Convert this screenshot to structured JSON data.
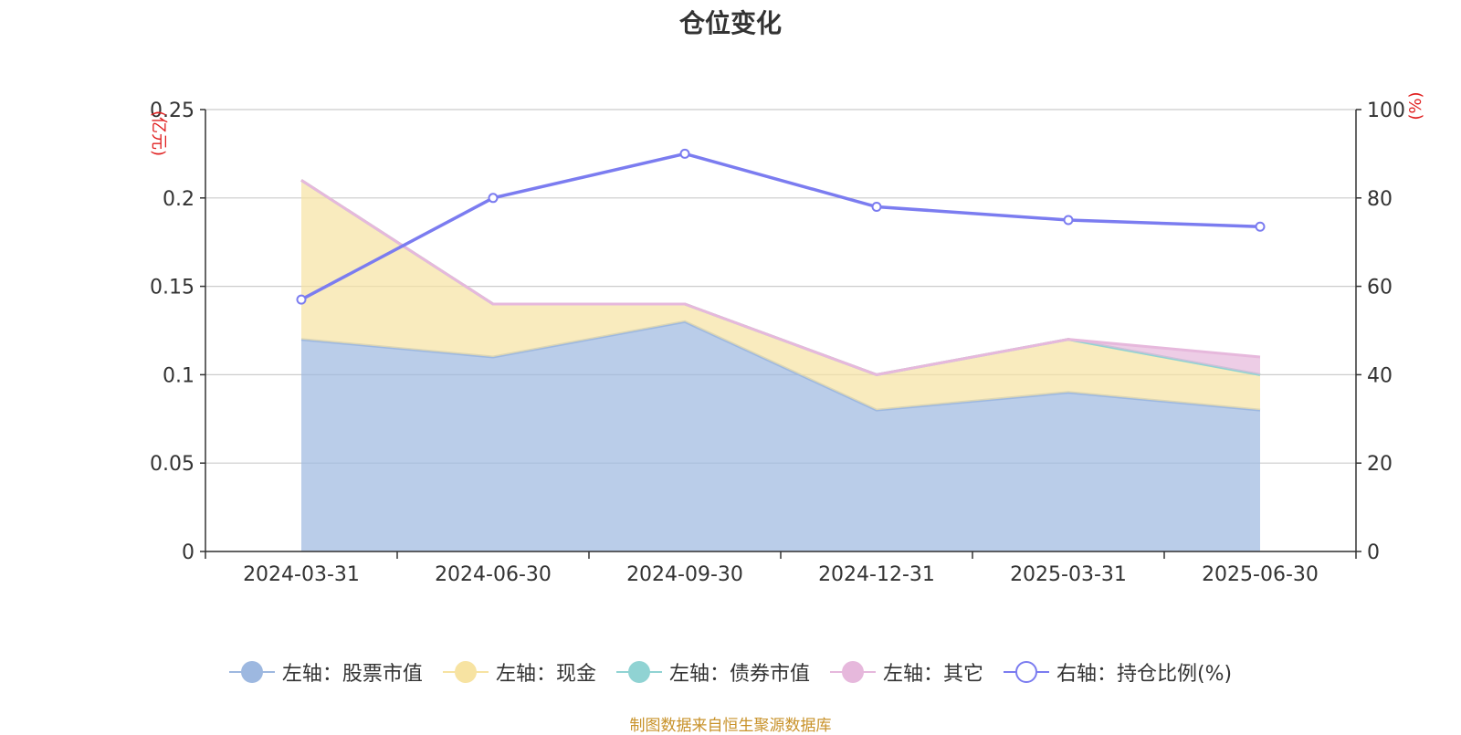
{
  "chart_data": {
    "type": "area",
    "title": "仓位变化",
    "categories": [
      "2024-03-31",
      "2024-06-30",
      "2024-09-30",
      "2024-12-31",
      "2025-03-31",
      "2025-06-30"
    ],
    "left_axis": {
      "label": "(亿元)",
      "ylim": [
        0,
        0.25
      ],
      "ticks": [
        "0",
        "0.05",
        "0.1",
        "0.15",
        "0.2",
        "0.25"
      ]
    },
    "right_axis": {
      "label": "(%)",
      "ylim": [
        0,
        100
      ],
      "ticks": [
        "0",
        "20",
        "40",
        "60",
        "80",
        "100"
      ]
    },
    "series": [
      {
        "name": "左轴：股票市值",
        "axis": "left",
        "stacked": true,
        "color": "#9db8e0",
        "values": [
          0.12,
          0.11,
          0.13,
          0.08,
          0.09,
          0.08
        ]
      },
      {
        "name": "左轴：现金",
        "axis": "left",
        "stacked": true,
        "color": "#f7e3a2",
        "values": [
          0.09,
          0.03,
          0.01,
          0.02,
          0.03,
          0.02
        ]
      },
      {
        "name": "左轴：债券市值",
        "axis": "left",
        "stacked": true,
        "color": "#90d3d3",
        "values": [
          0,
          0,
          0,
          0,
          0,
          0
        ]
      },
      {
        "name": "左轴：其它",
        "axis": "left",
        "stacked": true,
        "color": "#e6b8dc",
        "values": [
          0,
          0,
          0,
          0,
          0,
          0.01
        ]
      },
      {
        "name": "右轴：持仓比例(%)",
        "axis": "right",
        "type": "line",
        "color": "#7b7cf0",
        "values": [
          57,
          80,
          90,
          78,
          75,
          73.5
        ]
      }
    ],
    "grid": true,
    "legend_position": "bottom"
  },
  "footer": {
    "text": "制图数据来自恒生聚源数据库",
    "color": "#c8922a"
  }
}
